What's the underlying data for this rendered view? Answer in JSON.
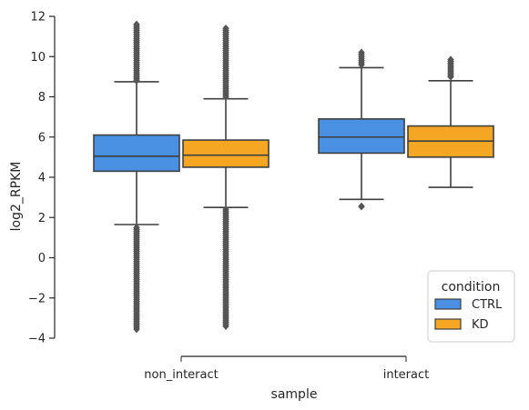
{
  "chart_data": {
    "type": "box",
    "xlabel": "sample",
    "ylabel": "log2_RPKM",
    "categories": [
      "non_interact",
      "interact"
    ],
    "ylim": [
      -4,
      12
    ],
    "yticks": [
      -4,
      -2,
      0,
      2,
      4,
      6,
      8,
      10,
      12
    ],
    "legend": {
      "title": "condition",
      "position": "bottom-right"
    },
    "series": [
      {
        "name": "CTRL",
        "color": "#4a90e2",
        "boxes": [
          {
            "category": "non_interact",
            "whisker_low": 1.65,
            "q1": 4.3,
            "median": 5.05,
            "q3": 6.1,
            "whisker_high": 8.75,
            "outliers_low": [
              -3.55,
              1.5
            ],
            "outliers_high": [
              8.8,
              11.6
            ]
          },
          {
            "category": "interact",
            "whisker_low": 2.9,
            "q1": 5.2,
            "median": 6.0,
            "q3": 6.9,
            "whisker_high": 9.45,
            "outliers_low": [
              2.55
            ],
            "outliers_high": [
              9.6,
              10.2
            ]
          }
        ]
      },
      {
        "name": "KD",
        "color": "#f5a623",
        "boxes": [
          {
            "category": "non_interact",
            "whisker_low": 2.5,
            "q1": 4.5,
            "median": 5.1,
            "q3": 5.85,
            "whisker_high": 7.9,
            "outliers_low": [
              -3.4,
              2.4
            ],
            "outliers_high": [
              8.0,
              11.4
            ]
          },
          {
            "category": "interact",
            "whisker_low": 3.5,
            "q1": 5.0,
            "median": 5.8,
            "q3": 6.55,
            "whisker_high": 8.8,
            "outliers_low": [],
            "outliers_high": [
              9.0,
              9.85
            ]
          }
        ]
      }
    ]
  }
}
